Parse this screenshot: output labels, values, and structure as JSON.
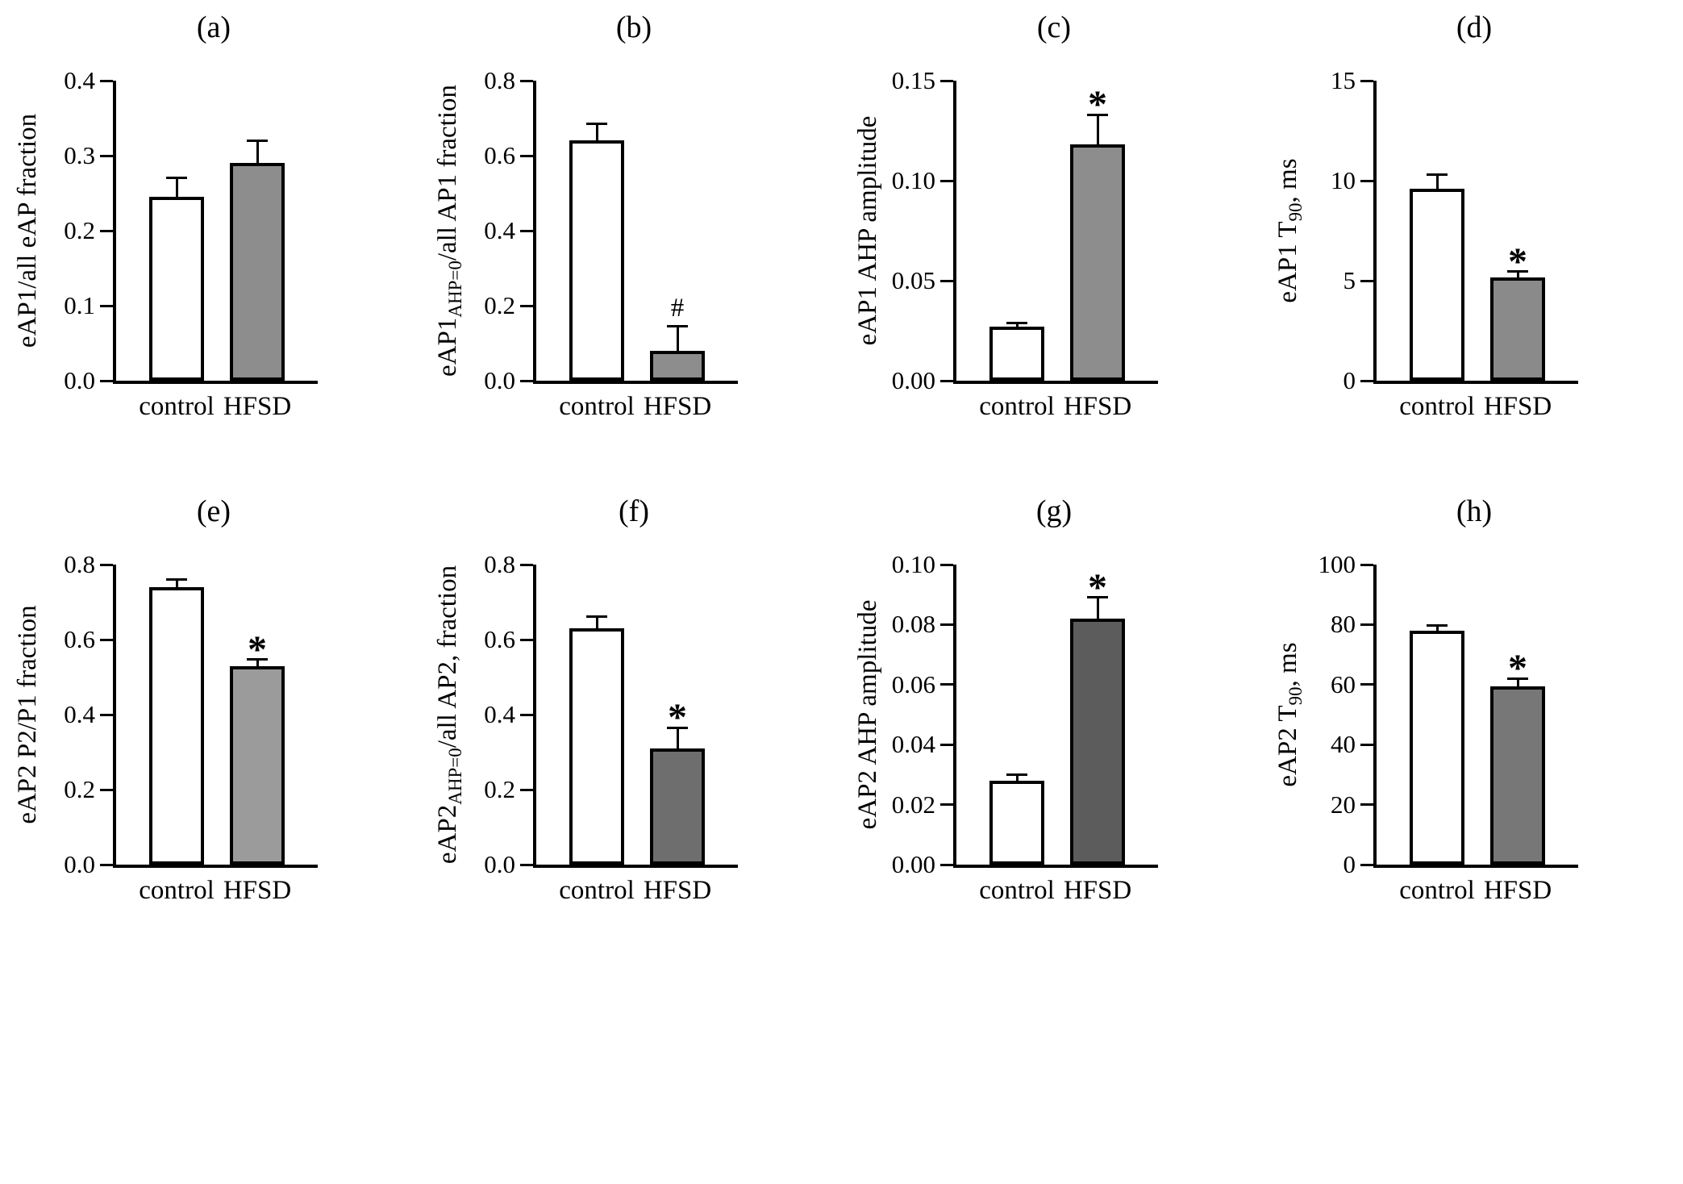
{
  "figure": {
    "background": "#ffffff",
    "categories": [
      "control",
      "HFSD"
    ],
    "control_fill": "#ffffff",
    "axis_color": "#000000"
  },
  "chart_data": [
    {
      "type": "bar",
      "title": "(a)",
      "ylabel_parts": [
        {
          "text": "eAP1/all eAP fraction",
          "sub": false
        }
      ],
      "categories": [
        "control",
        "HFSD"
      ],
      "series": [
        {
          "name": "control",
          "value": 0.245,
          "error": 0.025,
          "fill": "#ffffff"
        },
        {
          "name": "HFSD",
          "value": 0.29,
          "error": 0.03,
          "fill": "#8d8d8d"
        }
      ],
      "ylim": [
        0,
        0.4
      ],
      "yticks": [
        0.0,
        0.1,
        0.2,
        0.3,
        0.4
      ],
      "ytick_labels": [
        "0.0",
        "0.1",
        "0.2",
        "0.3",
        "0.4"
      ],
      "significance": null
    },
    {
      "type": "bar",
      "title": "(b)",
      "ylabel_parts": [
        {
          "text": "eAP1",
          "sub": false
        },
        {
          "text": "AHP=0",
          "sub": true
        },
        {
          "text": "/all AP1 fraction",
          "sub": false
        }
      ],
      "categories": [
        "control",
        "HFSD"
      ],
      "series": [
        {
          "name": "control",
          "value": 0.64,
          "error": 0.045,
          "fill": "#ffffff"
        },
        {
          "name": "HFSD",
          "value": 0.08,
          "error": 0.065,
          "fill": "#8d8d8d"
        }
      ],
      "ylim": [
        0,
        0.8
      ],
      "yticks": [
        0.0,
        0.2,
        0.4,
        0.6,
        0.8
      ],
      "ytick_labels": [
        "0.0",
        "0.2",
        "0.4",
        "0.6",
        "0.8"
      ],
      "significance": {
        "label": "#",
        "bar": 1
      }
    },
    {
      "type": "bar",
      "title": "(c)",
      "ylabel_parts": [
        {
          "text": "eAP1 AHP amplitude",
          "sub": false
        }
      ],
      "categories": [
        "control",
        "HFSD"
      ],
      "series": [
        {
          "name": "control",
          "value": 0.027,
          "error": 0.002,
          "fill": "#ffffff"
        },
        {
          "name": "HFSD",
          "value": 0.118,
          "error": 0.015,
          "fill": "#8d8d8d"
        }
      ],
      "ylim": [
        0,
        0.15
      ],
      "yticks": [
        0.0,
        0.05,
        0.1,
        0.15
      ],
      "ytick_labels": [
        "0.00",
        "0.05",
        "0.10",
        "0.15"
      ],
      "significance": {
        "label": "*",
        "bar": 1
      }
    },
    {
      "type": "bar",
      "title": "(d)",
      "ylabel_parts": [
        {
          "text": "eAP1 T",
          "sub": false
        },
        {
          "text": "90",
          "sub": true
        },
        {
          "text": ", ms",
          "sub": false
        }
      ],
      "categories": [
        "control",
        "HFSD"
      ],
      "series": [
        {
          "name": "control",
          "value": 9.6,
          "error": 0.7,
          "fill": "#ffffff"
        },
        {
          "name": "HFSD",
          "value": 5.15,
          "error": 0.3,
          "fill": "#8a8a8a"
        }
      ],
      "ylim": [
        0,
        15
      ],
      "yticks": [
        0,
        5,
        10,
        15
      ],
      "ytick_labels": [
        "0",
        "5",
        "10",
        "15"
      ],
      "significance": {
        "label": "*",
        "bar": 1
      }
    },
    {
      "type": "bar",
      "title": "(e)",
      "ylabel_parts": [
        {
          "text": "eAP2 P2/P1 fraction",
          "sub": false
        }
      ],
      "categories": [
        "control",
        "HFSD"
      ],
      "series": [
        {
          "name": "control",
          "value": 0.74,
          "error": 0.02,
          "fill": "#ffffff"
        },
        {
          "name": "HFSD",
          "value": 0.53,
          "error": 0.017,
          "fill": "#9b9b9b"
        }
      ],
      "ylim": [
        0,
        0.8
      ],
      "yticks": [
        0.0,
        0.2,
        0.4,
        0.6,
        0.8
      ],
      "ytick_labels": [
        "0.0",
        "0.2",
        "0.4",
        "0.6",
        "0.8"
      ],
      "significance": {
        "label": "*",
        "bar": 1
      }
    },
    {
      "type": "bar",
      "title": "(f)",
      "ylabel_parts": [
        {
          "text": "eAP2",
          "sub": false
        },
        {
          "text": "AHP=0",
          "sub": true
        },
        {
          "text": "/all AP2, fraction",
          "sub": false
        }
      ],
      "categories": [
        "control",
        "HFSD"
      ],
      "series": [
        {
          "name": "control",
          "value": 0.63,
          "error": 0.032,
          "fill": "#ffffff"
        },
        {
          "name": "HFSD",
          "value": 0.31,
          "error": 0.055,
          "fill": "#6e6e6e"
        }
      ],
      "ylim": [
        0,
        0.8
      ],
      "yticks": [
        0.0,
        0.2,
        0.4,
        0.6,
        0.8
      ],
      "ytick_labels": [
        "0.0",
        "0.2",
        "0.4",
        "0.6",
        "0.8"
      ],
      "significance": {
        "label": "*",
        "bar": 1
      }
    },
    {
      "type": "bar",
      "title": "(g)",
      "ylabel_parts": [
        {
          "text": "eAP2 AHP amplitude",
          "sub": false
        }
      ],
      "categories": [
        "control",
        "HFSD"
      ],
      "series": [
        {
          "name": "control",
          "value": 0.028,
          "error": 0.002,
          "fill": "#ffffff"
        },
        {
          "name": "HFSD",
          "value": 0.082,
          "error": 0.007,
          "fill": "#5c5c5c"
        }
      ],
      "ylim": [
        0,
        0.1
      ],
      "yticks": [
        0.0,
        0.02,
        0.04,
        0.06,
        0.08,
        0.1
      ],
      "ytick_labels": [
        "0.00",
        "0.02",
        "0.04",
        "0.06",
        "0.08",
        "0.10"
      ],
      "significance": {
        "label": "*",
        "bar": 1
      }
    },
    {
      "type": "bar",
      "title": "(h)",
      "ylabel_parts": [
        {
          "text": "eAP2 T",
          "sub": false
        },
        {
          "text": "90",
          "sub": true
        },
        {
          "text": ", ms",
          "sub": false
        }
      ],
      "categories": [
        "control",
        "HFSD"
      ],
      "series": [
        {
          "name": "control",
          "value": 78,
          "error": 1.8,
          "fill": "#ffffff"
        },
        {
          "name": "HFSD",
          "value": 59.5,
          "error": 2.5,
          "fill": "#777777"
        }
      ],
      "ylim": [
        0,
        100
      ],
      "yticks": [
        0,
        20,
        40,
        60,
        80,
        100
      ],
      "ytick_labels": [
        "0",
        "20",
        "40",
        "60",
        "80",
        "100"
      ],
      "significance": {
        "label": "*",
        "bar": 1
      }
    }
  ]
}
